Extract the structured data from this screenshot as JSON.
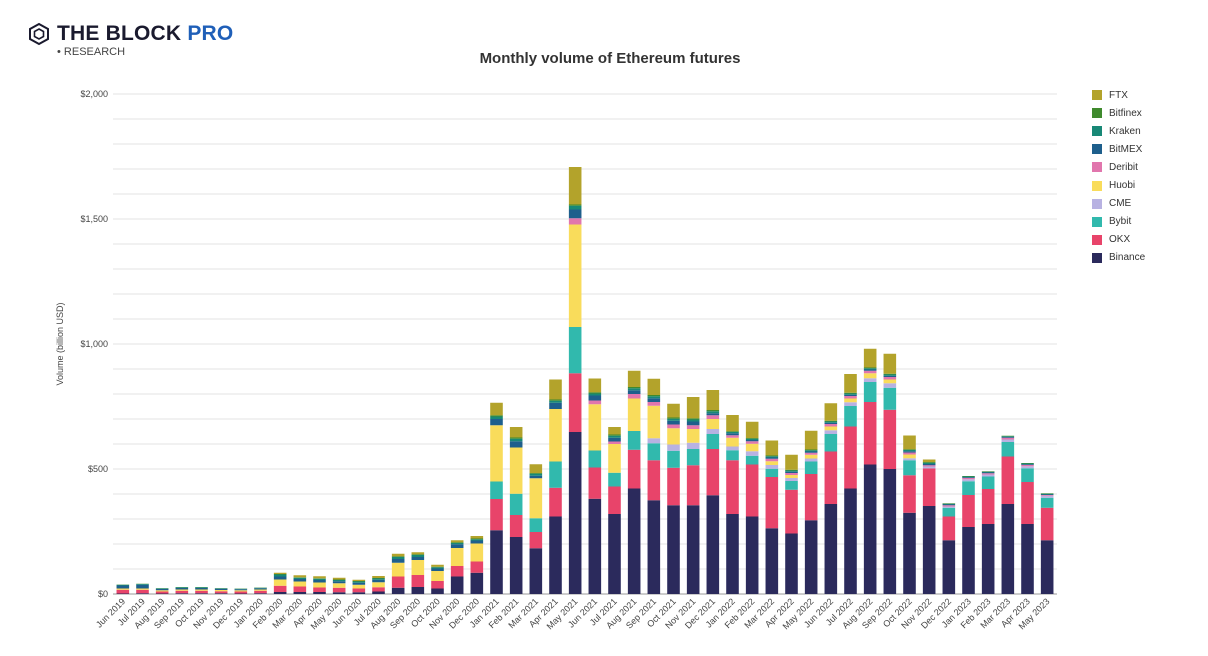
{
  "brand": {
    "name": "THE BLOCK",
    "pro": "PRO",
    "sub": "• RESEARCH"
  },
  "chart_data": {
    "type": "bar",
    "stacked": true,
    "title": "Monthly volume of Ethereum futures",
    "ylabel": "Volume (billion USD)",
    "xlabel": "",
    "ylim": [
      0,
      2000
    ],
    "yticks": [
      0,
      500,
      1000,
      1500,
      2000
    ],
    "ytick_labels": [
      "$0",
      "$500",
      "$1,000",
      "$1,500",
      "$2,000"
    ],
    "grid": true,
    "legend_position": "right",
    "categories": [
      "Jun 2019",
      "Jul 2019",
      "Aug 2019",
      "Sep 2019",
      "Oct 2019",
      "Nov 2019",
      "Dec 2019",
      "Jan 2020",
      "Feb 2020",
      "Mar 2020",
      "Apr 2020",
      "May 2020",
      "Jun 2020",
      "Jul 2020",
      "Aug 2020",
      "Sep 2020",
      "Oct 2020",
      "Nov 2020",
      "Dec 2020",
      "Jan 2021",
      "Feb 2021",
      "Mar 2021",
      "Apr 2021",
      "May 2021",
      "Jun 2021",
      "Jul 2021",
      "Aug 2021",
      "Sep 2021",
      "Oct 2021",
      "Nov 2021",
      "Dec 2021",
      "Jan 2022",
      "Feb 2022",
      "Mar 2022",
      "Apr 2022",
      "May 2022",
      "Jun 2022",
      "Jul 2022",
      "Aug 2022",
      "Sep 2022",
      "Oct 2022",
      "Nov 2022",
      "Dec 2022",
      "Jan 2023",
      "Feb 2023",
      "Mar 2023",
      "Apr 2023",
      "May 2023"
    ],
    "series": [
      {
        "name": "Binance",
        "color": "#2b2a5c",
        "values": [
          2,
          3,
          2,
          3,
          3,
          3,
          2,
          3,
          8,
          8,
          8,
          7,
          7,
          10,
          25,
          28,
          22,
          70,
          85,
          255,
          228,
          183,
          310,
          648,
          381,
          320,
          422,
          375,
          355,
          355,
          395,
          320,
          310,
          263,
          242,
          295,
          360,
          422,
          518,
          500,
          325,
          352,
          215,
          268,
          280,
          360,
          280,
          215
        ]
      },
      {
        "name": "OKX",
        "color": "#e8446a",
        "values": [
          15,
          14,
          8,
          10,
          10,
          8,
          8,
          10,
          25,
          22,
          18,
          18,
          15,
          17,
          45,
          48,
          30,
          42,
          45,
          125,
          88,
          65,
          115,
          235,
          125,
          110,
          155,
          160,
          150,
          160,
          185,
          215,
          208,
          205,
          175,
          185,
          210,
          248,
          250,
          237,
          150,
          150,
          95,
          128,
          140,
          190,
          168,
          130
        ]
      },
      {
        "name": "Bybit",
        "color": "#31b9ad",
        "values": [
          0,
          0,
          0,
          0,
          0,
          0,
          0,
          0,
          0,
          0,
          0,
          0,
          0,
          0,
          0,
          0,
          0,
          0,
          0,
          70,
          85,
          55,
          105,
          185,
          68,
          55,
          75,
          68,
          68,
          65,
          60,
          40,
          35,
          33,
          35,
          50,
          70,
          82,
          80,
          88,
          60,
          0,
          35,
          55,
          50,
          58,
          55,
          40
        ]
      },
      {
        "name": "CME",
        "color": "#b8b2e2",
        "values": [
          0,
          0,
          0,
          0,
          0,
          0,
          0,
          0,
          0,
          0,
          0,
          0,
          0,
          0,
          0,
          0,
          0,
          0,
          0,
          0,
          0,
          0,
          0,
          0,
          0,
          0,
          0,
          20,
          25,
          25,
          20,
          15,
          18,
          15,
          12,
          12,
          15,
          15,
          15,
          18,
          8,
          8,
          5,
          8,
          8,
          10,
          8,
          8
        ]
      },
      {
        "name": "Huobi",
        "color": "#f9dc5b",
        "values": [
          5,
          5,
          5,
          5,
          5,
          5,
          5,
          5,
          25,
          20,
          20,
          18,
          15,
          20,
          55,
          60,
          40,
          72,
          72,
          225,
          185,
          160,
          210,
          410,
          185,
          115,
          130,
          130,
          65,
          55,
          40,
          35,
          30,
          15,
          12,
          15,
          15,
          15,
          20,
          15,
          15,
          0,
          0,
          0,
          0,
          0,
          0,
          0
        ]
      },
      {
        "name": "Deribit",
        "color": "#e176ad",
        "values": [
          0,
          0,
          0,
          0,
          0,
          0,
          0,
          0,
          0,
          0,
          0,
          0,
          0,
          0,
          0,
          0,
          0,
          0,
          0,
          0,
          0,
          0,
          0,
          25,
          15,
          10,
          18,
          15,
          15,
          15,
          15,
          10,
          10,
          10,
          8,
          8,
          10,
          10,
          10,
          10,
          8,
          5,
          5,
          5,
          5,
          7,
          5,
          3
        ]
      },
      {
        "name": "BitMEX",
        "color": "#1e5f8c",
        "values": [
          12,
          15,
          5,
          6,
          6,
          5,
          4,
          5,
          12,
          10,
          10,
          8,
          8,
          10,
          15,
          12,
          10,
          15,
          12,
          25,
          25,
          10,
          25,
          35,
          20,
          15,
          15,
          15,
          15,
          15,
          8,
          8,
          5,
          5,
          5,
          5,
          5,
          5,
          5,
          5,
          5,
          5,
          3,
          3,
          3,
          3,
          3,
          2
        ]
      },
      {
        "name": "Kraken",
        "color": "#188876",
        "values": [
          3,
          3,
          2,
          3,
          3,
          2,
          2,
          2,
          8,
          5,
          5,
          5,
          5,
          5,
          8,
          8,
          5,
          5,
          5,
          10,
          10,
          8,
          8,
          15,
          8,
          8,
          8,
          8,
          8,
          8,
          8,
          5,
          5,
          5,
          5,
          5,
          5,
          5,
          5,
          5,
          5,
          5,
          3,
          3,
          3,
          3,
          3,
          3
        ]
      },
      {
        "name": "Bitfinex",
        "color": "#3f8a2d",
        "values": [
          1,
          1,
          1,
          1,
          1,
          1,
          1,
          1,
          2,
          2,
          2,
          2,
          2,
          2,
          3,
          3,
          2,
          3,
          3,
          5,
          5,
          3,
          5,
          5,
          5,
          5,
          5,
          5,
          5,
          5,
          5,
          3,
          3,
          3,
          3,
          3,
          3,
          3,
          3,
          3,
          3,
          3,
          2,
          2,
          2,
          2,
          2,
          2
        ]
      },
      {
        "name": "FTX",
        "color": "#b3a32b",
        "values": [
          0,
          0,
          0,
          0,
          0,
          0,
          0,
          0,
          5,
          8,
          8,
          7,
          5,
          8,
          10,
          8,
          8,
          8,
          10,
          50,
          42,
          35,
          80,
          150,
          55,
          30,
          65,
          65,
          55,
          85,
          80,
          65,
          65,
          60,
          60,
          75,
          70,
          75,
          75,
          80,
          55,
          10,
          0,
          0,
          0,
          0,
          0,
          0
        ]
      }
    ]
  }
}
